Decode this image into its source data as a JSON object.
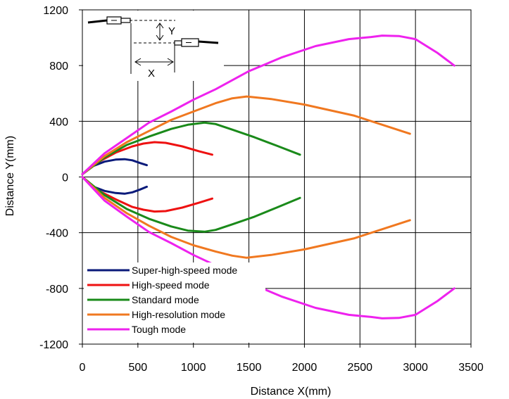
{
  "chart_data": {
    "type": "line",
    "xlabel": "Distance X(mm)",
    "ylabel": "Distance Y(mm)",
    "xlim": [
      0,
      3500
    ],
    "ylim": [
      -1200,
      1200
    ],
    "xticks": [
      0,
      500,
      1000,
      1500,
      2000,
      2500,
      3000,
      3500
    ],
    "yticks": [
      1200,
      800,
      400,
      0,
      -400,
      -800,
      -1200
    ],
    "grid": true,
    "legend_position": "bottom-left",
    "inset_labels": {
      "y": "Y",
      "x": "X"
    },
    "series": [
      {
        "name": "Super-high-speed mode",
        "color": "#0a1a7a",
        "upper": [
          [
            0,
            20
          ],
          [
            100,
            80
          ],
          [
            200,
            110
          ],
          [
            300,
            125
          ],
          [
            380,
            128
          ],
          [
            450,
            120
          ],
          [
            520,
            100
          ],
          [
            580,
            85
          ]
        ],
        "lower": [
          [
            0,
            0
          ],
          [
            100,
            -70
          ],
          [
            200,
            -100
          ],
          [
            300,
            -115
          ],
          [
            380,
            -120
          ],
          [
            450,
            -110
          ],
          [
            520,
            -90
          ],
          [
            580,
            -70
          ]
        ]
      },
      {
        "name": "High-speed mode",
        "color": "#ee1111",
        "upper": [
          [
            0,
            20
          ],
          [
            150,
            110
          ],
          [
            300,
            175
          ],
          [
            450,
            220
          ],
          [
            550,
            240
          ],
          [
            650,
            250
          ],
          [
            750,
            245
          ],
          [
            900,
            220
          ],
          [
            1050,
            185
          ],
          [
            1170,
            160
          ]
        ],
        "lower": [
          [
            0,
            0
          ],
          [
            150,
            -100
          ],
          [
            300,
            -160
          ],
          [
            450,
            -215
          ],
          [
            550,
            -235
          ],
          [
            650,
            -248
          ],
          [
            750,
            -245
          ],
          [
            900,
            -220
          ],
          [
            1050,
            -185
          ],
          [
            1170,
            -155
          ]
        ]
      },
      {
        "name": "Standard mode",
        "color": "#1a8a1a",
        "upper": [
          [
            0,
            20
          ],
          [
            200,
            140
          ],
          [
            400,
            230
          ],
          [
            600,
            290
          ],
          [
            800,
            345
          ],
          [
            950,
            375
          ],
          [
            1100,
            390
          ],
          [
            1200,
            380
          ],
          [
            1350,
            340
          ],
          [
            1550,
            285
          ],
          [
            1750,
            225
          ],
          [
            1960,
            160
          ]
        ],
        "lower": [
          [
            0,
            0
          ],
          [
            200,
            -130
          ],
          [
            400,
            -230
          ],
          [
            600,
            -300
          ],
          [
            800,
            -355
          ],
          [
            950,
            -385
          ],
          [
            1100,
            -393
          ],
          [
            1200,
            -380
          ],
          [
            1350,
            -340
          ],
          [
            1550,
            -285
          ],
          [
            1750,
            -220
          ],
          [
            1960,
            -150
          ]
        ]
      },
      {
        "name": "High-resolution mode",
        "color": "#f07820",
        "upper": [
          [
            0,
            20
          ],
          [
            200,
            150
          ],
          [
            400,
            250
          ],
          [
            600,
            330
          ],
          [
            800,
            410
          ],
          [
            1000,
            470
          ],
          [
            1200,
            530
          ],
          [
            1350,
            565
          ],
          [
            1480,
            578
          ],
          [
            1700,
            560
          ],
          [
            2000,
            520
          ],
          [
            2450,
            440
          ],
          [
            2950,
            310
          ]
        ],
        "lower": [
          [
            0,
            0
          ],
          [
            200,
            -150
          ],
          [
            400,
            -260
          ],
          [
            600,
            -350
          ],
          [
            800,
            -430
          ],
          [
            1000,
            -490
          ],
          [
            1200,
            -535
          ],
          [
            1350,
            -565
          ],
          [
            1480,
            -580
          ],
          [
            1700,
            -560
          ],
          [
            2000,
            -520
          ],
          [
            2450,
            -440
          ],
          [
            2950,
            -310
          ]
        ]
      },
      {
        "name": "Tough mode",
        "color": "#ee22ee",
        "upper": [
          [
            0,
            20
          ],
          [
            200,
            170
          ],
          [
            400,
            280
          ],
          [
            600,
            390
          ],
          [
            800,
            470
          ],
          [
            1000,
            555
          ],
          [
            1200,
            630
          ],
          [
            1500,
            760
          ],
          [
            1800,
            860
          ],
          [
            2100,
            940
          ],
          [
            2400,
            990
          ],
          [
            2600,
            1005
          ],
          [
            2700,
            1015
          ],
          [
            2850,
            1012
          ],
          [
            3000,
            990
          ],
          [
            3200,
            890
          ],
          [
            3350,
            800
          ]
        ],
        "lower": [
          [
            0,
            0
          ],
          [
            200,
            -170
          ],
          [
            400,
            -285
          ],
          [
            600,
            -395
          ],
          [
            800,
            -475
          ],
          [
            1000,
            -560
          ],
          [
            1200,
            -635
          ],
          [
            1500,
            -760
          ],
          [
            1800,
            -860
          ],
          [
            2100,
            -940
          ],
          [
            2400,
            -990
          ],
          [
            2600,
            -1005
          ],
          [
            2700,
            -1015
          ],
          [
            2850,
            -1012
          ],
          [
            3000,
            -990
          ],
          [
            3200,
            -890
          ],
          [
            3350,
            -800
          ]
        ]
      }
    ]
  }
}
